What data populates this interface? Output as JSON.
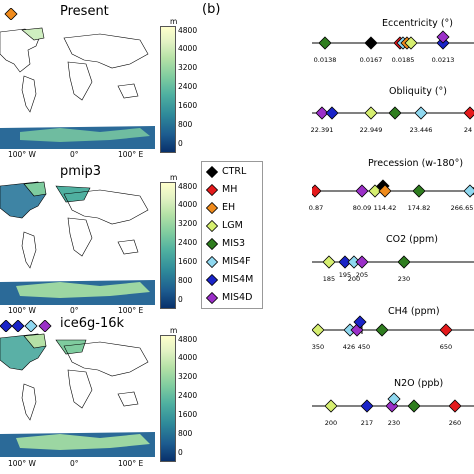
{
  "panel_b_label": "(b)",
  "colorbar": {
    "unit": "m",
    "ticks": [
      "4800",
      "4000",
      "3200",
      "2400",
      "1600",
      "800",
      "0"
    ]
  },
  "maps": [
    {
      "title": "Present",
      "lon_ticks": [
        "100° W",
        "0°",
        "100° E"
      ]
    },
    {
      "title": "pmip3",
      "lon_ticks": [
        "100° W",
        "0°",
        "100° E"
      ]
    },
    {
      "title": "ice6g-16k",
      "lon_ticks": [
        "100° W",
        "0°",
        "100° E"
      ]
    }
  ],
  "legend": [
    {
      "label": "CTRL",
      "color": "#000000"
    },
    {
      "label": "MH",
      "color": "#e41a1c"
    },
    {
      "label": "EH",
      "color": "#f08b1c"
    },
    {
      "label": "LGM",
      "color": "#d6ef70"
    },
    {
      "label": "MIS3",
      "color": "#2f7d1f"
    },
    {
      "label": "MIS4F",
      "color": "#8fd8f0"
    },
    {
      "label": "MIS4M",
      "color": "#1a24c8"
    },
    {
      "label": "MIS4D",
      "color": "#9b2fc8"
    }
  ],
  "chart_data": [
    {
      "type": "scatter",
      "title": "Eccentricity (°)",
      "tick_labels": [
        "0.0138",
        "0.0167",
        "0.0185",
        "0.0213"
      ]
    },
    {
      "type": "scatter",
      "title": "Obliquity (°)",
      "tick_labels": [
        "22.391",
        "22.949",
        "23.446",
        "24"
      ]
    },
    {
      "type": "scatter",
      "title": "Precession (w-180°)",
      "tick_labels": [
        "0.87",
        "80.09",
        "114.42",
        "174.82",
        "266.65"
      ]
    },
    {
      "type": "scatter",
      "title": "CO2 (ppm)",
      "tick_labels": [
        "185",
        "195",
        "200",
        "205",
        "230"
      ]
    },
    {
      "type": "scatter",
      "title": "CH4 (ppm)",
      "tick_labels": [
        "350",
        "426",
        "450",
        "650"
      ]
    },
    {
      "type": "scatter",
      "title": "N2O (ppb)",
      "tick_labels": [
        "200",
        "217",
        "230",
        "260"
      ]
    }
  ]
}
